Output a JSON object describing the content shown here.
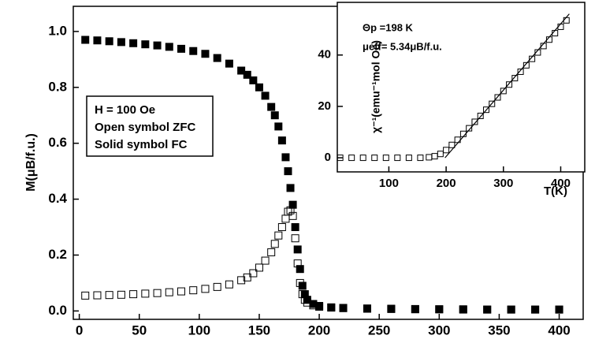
{
  "chart_data": [
    {
      "type": "scatter",
      "ylabel": "M(μB/f.u.)",
      "xlim": [
        -5,
        420
      ],
      "ylim": [
        -0.03,
        1.09
      ],
      "xticks": [
        0,
        50,
        100,
        150,
        200,
        250,
        300,
        350,
        400
      ],
      "yticks": [
        {
          "value": 0,
          "label": "0.0"
        },
        0.2,
        0.4,
        0.6,
        0.8,
        {
          "value": 1,
          "label": "1.0"
        }
      ],
      "annotations": [
        "H = 100 Oe",
        "Open symbol ZFC",
        "Solid symbol FC"
      ],
      "series": [
        {
          "name": "Solid symbol FC",
          "marker": "square-filled",
          "color": "#000000",
          "x": [
            5,
            15,
            25,
            35,
            45,
            55,
            65,
            75,
            85,
            95,
            105,
            115,
            125,
            135,
            140,
            145,
            150,
            155,
            160,
            163,
            166,
            169,
            172,
            174,
            176,
            178,
            180,
            182,
            184,
            186,
            188,
            190,
            195,
            200,
            210,
            220,
            240,
            260,
            280,
            300,
            320,
            340,
            360,
            380,
            400
          ],
          "values": [
            0.97,
            0.968,
            0.965,
            0.962,
            0.958,
            0.954,
            0.95,
            0.945,
            0.938,
            0.93,
            0.92,
            0.905,
            0.885,
            0.86,
            0.845,
            0.825,
            0.8,
            0.77,
            0.73,
            0.7,
            0.66,
            0.61,
            0.55,
            0.5,
            0.44,
            0.38,
            0.3,
            0.22,
            0.15,
            0.09,
            0.06,
            0.04,
            0.025,
            0.018,
            0.013,
            0.011,
            0.009,
            0.008,
            0.007,
            0.006,
            0.006,
            0.005,
            0.005,
            0.005,
            0.005
          ]
        },
        {
          "name": "Open symbol ZFC",
          "marker": "square-open",
          "color": "#000000",
          "x": [
            5,
            15,
            25,
            35,
            45,
            55,
            65,
            75,
            85,
            95,
            105,
            115,
            125,
            135,
            140,
            145,
            150,
            155,
            160,
            163,
            166,
            169,
            172,
            174,
            176,
            178,
            180,
            182,
            184,
            186,
            188,
            190,
            195,
            200,
            210,
            220,
            240,
            260,
            280,
            300,
            320,
            340,
            360,
            380,
            400
          ],
          "values": [
            0.055,
            0.056,
            0.057,
            0.058,
            0.06,
            0.062,
            0.064,
            0.067,
            0.07,
            0.074,
            0.079,
            0.086,
            0.095,
            0.11,
            0.12,
            0.135,
            0.155,
            0.18,
            0.21,
            0.24,
            0.27,
            0.3,
            0.33,
            0.355,
            0.36,
            0.34,
            0.26,
            0.17,
            0.1,
            0.06,
            0.04,
            0.03,
            0.02,
            0.015,
            0.012,
            0.01,
            0.008,
            0.007,
            0.006,
            0.006,
            0.005,
            0.005,
            0.005,
            0.005,
            0.005
          ]
        }
      ]
    },
    {
      "type": "scatter",
      "xlabel": "T(K)",
      "ylabel": "χ⁻¹(emu⁻¹mol Oe)",
      "xlim": [
        10,
        442
      ],
      "ylim": [
        -5.5,
        60.5
      ],
      "xticks": [
        100,
        200,
        300,
        400
      ],
      "yticks": [
        0,
        20,
        40
      ],
      "annotations": [
        "Θp =198 K",
        "μeff= 5.34μB/f.u."
      ],
      "series": [
        {
          "marker": "square-open",
          "color": "#000000",
          "x": [
            15,
            35,
            55,
            75,
            95,
            115,
            135,
            155,
            170,
            180,
            190,
            200,
            210,
            220,
            230,
            240,
            250,
            260,
            270,
            280,
            290,
            300,
            310,
            320,
            330,
            340,
            350,
            360,
            370,
            380,
            390,
            400,
            410
          ],
          "values": [
            0,
            0,
            0,
            0,
            0,
            0,
            0,
            0,
            0.2,
            0.6,
            1.5,
            3,
            5,
            7,
            9.3,
            11.5,
            14,
            16.3,
            18.7,
            21,
            23.5,
            26,
            28.5,
            31,
            33.5,
            36,
            38.5,
            41,
            43.5,
            46,
            48.5,
            51,
            53.5
          ]
        },
        {
          "marker": "line",
          "color": "#000000",
          "x": [
            198,
            415
          ],
          "values": [
            0,
            56
          ]
        }
      ]
    }
  ]
}
